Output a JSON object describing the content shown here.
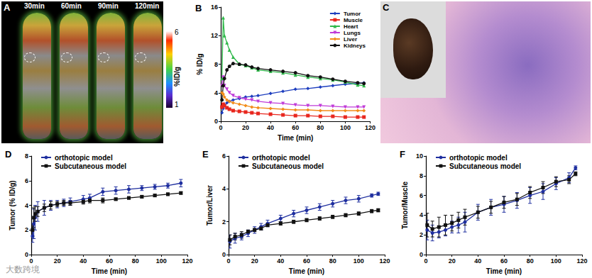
{
  "panels": {
    "A": {
      "title": "A",
      "time_labels": [
        "30min",
        "60min",
        "90min",
        "120min"
      ],
      "colorbar": {
        "max": 6,
        "min": 1,
        "label": "%ID/g"
      }
    },
    "C": {
      "title": "C"
    }
  },
  "watermark": "大数跨境",
  "chart_data": [
    {
      "type": "line",
      "title": "B",
      "x_label": "Time (min)",
      "y_label": "% ID/g",
      "x": [
        1,
        2,
        3,
        5,
        7,
        10,
        15,
        20,
        25,
        30,
        40,
        50,
        60,
        70,
        80,
        90,
        100,
        110,
        115
      ],
      "series": [
        {
          "name": "Tumor",
          "color": "#1f3fbf",
          "marker": "diamond",
          "values": [
            1.2,
            1.8,
            2.2,
            2.6,
            2.8,
            3.0,
            3.2,
            3.4,
            3.5,
            3.6,
            3.9,
            4.2,
            4.5,
            4.6,
            4.8,
            5.0,
            5.2,
            5.3,
            5.4
          ]
        },
        {
          "name": "Muscle",
          "color": "#e8271e",
          "marker": "square",
          "values": [
            2.0,
            2.4,
            2.2,
            1.9,
            1.7,
            1.5,
            1.4,
            1.3,
            1.2,
            1.1,
            1.0,
            0.9,
            0.8,
            0.8,
            0.7,
            0.7,
            0.6,
            0.6,
            0.6
          ]
        },
        {
          "name": "Heart",
          "color": "#2fb84a",
          "marker": "triangle",
          "values": [
            6.0,
            14.5,
            12.0,
            11.0,
            10.0,
            9.0,
            8.0,
            7.8,
            7.5,
            7.2,
            7.0,
            6.8,
            6.5,
            6.2,
            6.0,
            5.8,
            5.5,
            5.1,
            5.0
          ]
        },
        {
          "name": "Lungs",
          "color": "#c03bd8",
          "marker": "triangle-down",
          "values": [
            5.0,
            6.2,
            5.0,
            4.5,
            4.0,
            3.6,
            3.3,
            3.1,
            3.0,
            2.8,
            2.6,
            2.5,
            2.3,
            2.2,
            2.2,
            2.1,
            2.0,
            2.0,
            2.0
          ]
        },
        {
          "name": "Liver",
          "color": "#f28c1a",
          "marker": "diamond",
          "values": [
            4.0,
            3.8,
            3.4,
            3.0,
            2.8,
            2.6,
            2.4,
            2.2,
            2.0,
            1.9,
            1.8,
            1.7,
            1.6,
            1.6,
            1.5,
            1.5,
            1.5,
            1.5,
            1.5
          ]
        },
        {
          "name": "Kidneys",
          "color": "#111111",
          "marker": "circle",
          "values": [
            3.0,
            5.0,
            6.0,
            7.2,
            7.7,
            8.1,
            8.0,
            7.9,
            7.6,
            7.4,
            7.2,
            7.0,
            6.8,
            6.4,
            6.2,
            5.9,
            5.6,
            5.4,
            5.3
          ]
        }
      ],
      "xlim": [
        0,
        120
      ],
      "xticks": [
        0,
        20,
        40,
        60,
        80,
        100,
        120
      ],
      "ylim": [
        0,
        16
      ],
      "yticks": [
        0,
        4,
        8,
        12,
        16
      ],
      "legend": "upper right",
      "grid": false
    },
    {
      "type": "line",
      "title": "D",
      "x_label": "Time (min)",
      "y_label": "Tumor (% ID/g)",
      "x": [
        1,
        2,
        3,
        5,
        10,
        15,
        20,
        25,
        30,
        40,
        45,
        55,
        65,
        75,
        85,
        95,
        105,
        115
      ],
      "series": [
        {
          "name": "orthotopic model",
          "color": "#1f2f9f",
          "marker": "circle",
          "values": [
            1.5,
            2.5,
            3.0,
            3.5,
            3.8,
            4.0,
            4.1,
            4.2,
            4.3,
            4.5,
            4.6,
            5.1,
            5.2,
            5.3,
            5.4,
            5.5,
            5.6,
            5.8
          ],
          "errors": [
            0.5,
            1.2,
            1.0,
            0.8,
            0.6,
            0.4,
            0.3,
            0.3,
            0.3,
            0.3,
            0.3,
            0.3,
            0.3,
            0.3,
            0.2,
            0.2,
            0.2,
            0.3
          ]
        },
        {
          "name": "Subcutaneous model",
          "color": "#111111",
          "marker": "square",
          "values": [
            2.0,
            3.0,
            3.3,
            3.5,
            3.8,
            4.0,
            4.1,
            4.2,
            4.2,
            4.3,
            4.4,
            4.4,
            4.5,
            4.6,
            4.7,
            4.8,
            4.9,
            5.0
          ],
          "errors": [
            0.5,
            0.8,
            0.6,
            0.4,
            0.3,
            0.3,
            0.2,
            0.2,
            0.2,
            0.2,
            0.2,
            0.2,
            0.1,
            0.1,
            0.1,
            0.1,
            0.1,
            0.1
          ]
        }
      ],
      "xlim": [
        0,
        120
      ],
      "xticks": [
        0,
        20,
        40,
        60,
        80,
        100,
        120
      ],
      "ylim": [
        0,
        8
      ],
      "yticks": [
        0,
        2,
        4,
        6,
        8
      ],
      "legend": "upper left",
      "grid": false
    },
    {
      "type": "line",
      "title": "E",
      "x_label": "Time (min)",
      "y_label": "Tumor/Liver",
      "x": [
        1,
        5,
        10,
        15,
        20,
        25,
        30,
        40,
        50,
        60,
        70,
        80,
        90,
        100,
        110,
        115
      ],
      "series": [
        {
          "name": "orthotopic model",
          "color": "#1f2f9f",
          "marker": "circle",
          "values": [
            0.8,
            1.0,
            1.1,
            1.3,
            1.5,
            1.7,
            1.9,
            2.2,
            2.5,
            2.7,
            2.9,
            3.1,
            3.3,
            3.4,
            3.6,
            3.7
          ],
          "errors": [
            0.4,
            0.3,
            0.2,
            0.2,
            0.2,
            0.2,
            0.2,
            0.2,
            0.2,
            0.2,
            0.2,
            0.2,
            0.2,
            0.2,
            0.1,
            0.1
          ]
        },
        {
          "name": "Subcutaneous model",
          "color": "#111111",
          "marker": "square",
          "values": [
            0.9,
            1.1,
            1.2,
            1.4,
            1.5,
            1.6,
            1.8,
            1.9,
            2.0,
            2.1,
            2.2,
            2.3,
            2.4,
            2.5,
            2.65,
            2.7
          ],
          "errors": [
            0.3,
            0.2,
            0.2,
            0.1,
            0.1,
            0.1,
            0.1,
            0.1,
            0.1,
            0.1,
            0.1,
            0.1,
            0.1,
            0.1,
            0.1,
            0.1
          ]
        }
      ],
      "xlim": [
        0,
        120
      ],
      "xticks": [
        0,
        20,
        40,
        60,
        80,
        100,
        120
      ],
      "ylim": [
        0,
        6
      ],
      "yticks": [
        0,
        2,
        4,
        6
      ],
      "legend": "upper left",
      "grid": false
    },
    {
      "type": "line",
      "title": "F",
      "x_label": "Time (min)",
      "y_label": "Tumor/Muscle",
      "x": [
        1,
        5,
        10,
        15,
        20,
        25,
        30,
        40,
        50,
        60,
        70,
        80,
        90,
        100,
        110,
        115
      ],
      "series": [
        {
          "name": "orthotopic model",
          "color": "#1f2f9f",
          "marker": "circle",
          "values": [
            2.5,
            2.2,
            2.3,
            2.5,
            2.8,
            3.0,
            3.3,
            4.3,
            4.8,
            5.1,
            5.5,
            6.0,
            6.4,
            7.2,
            7.8,
            8.8
          ],
          "errors": [
            1.0,
            0.8,
            0.6,
            0.6,
            0.6,
            0.8,
            1.0,
            0.8,
            0.8,
            0.8,
            0.8,
            0.8,
            0.8,
            0.6,
            0.5,
            0.2
          ]
        },
        {
          "name": "Subcutaneous model",
          "color": "#111111",
          "marker": "square",
          "values": [
            3.0,
            2.6,
            2.8,
            3.0,
            3.2,
            3.5,
            3.8,
            4.3,
            4.8,
            5.3,
            5.6,
            6.3,
            6.8,
            7.4,
            7.6,
            8.2
          ],
          "errors": [
            1.2,
            0.8,
            1.0,
            1.0,
            0.8,
            0.8,
            0.8,
            0.6,
            0.6,
            0.6,
            0.6,
            0.6,
            0.6,
            0.5,
            0.4,
            0.2
          ]
        }
      ],
      "xlim": [
        0,
        120
      ],
      "xticks": [
        0,
        20,
        40,
        60,
        80,
        100,
        120
      ],
      "ylim": [
        0,
        10
      ],
      "yticks": [
        0,
        2,
        4,
        6,
        8,
        10
      ],
      "legend": "upper left",
      "grid": false
    }
  ]
}
